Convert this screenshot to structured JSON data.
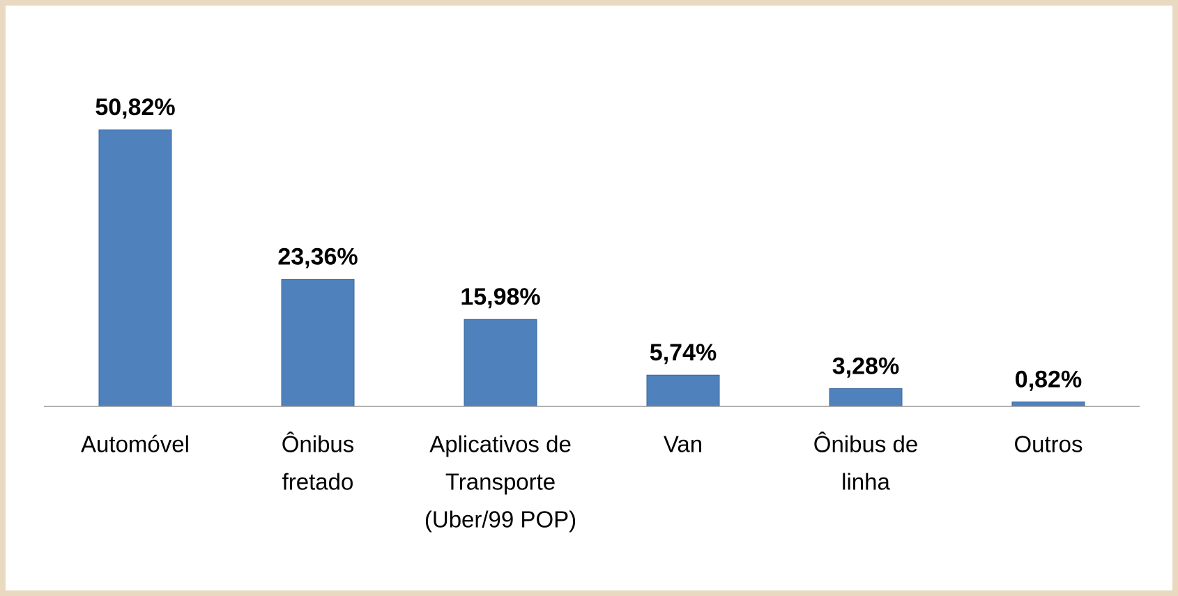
{
  "chart_data": {
    "type": "bar",
    "categories": [
      [
        "Automóvel"
      ],
      [
        "Ônibus",
        "fretado"
      ],
      [
        "Aplicativos de",
        "Transporte",
        "(Uber/99 POP)"
      ],
      [
        "Van"
      ],
      [
        "Ônibus de",
        "linha"
      ],
      [
        "Outros"
      ]
    ],
    "values": [
      50.82,
      23.36,
      15.98,
      5.74,
      3.28,
      0.82
    ],
    "value_labels": [
      "50,82%",
      "23,36%",
      "15,98%",
      "5,74%",
      "3,28%",
      "0,82%"
    ],
    "color": "#4f81bd",
    "ylim": [
      0,
      60
    ]
  }
}
